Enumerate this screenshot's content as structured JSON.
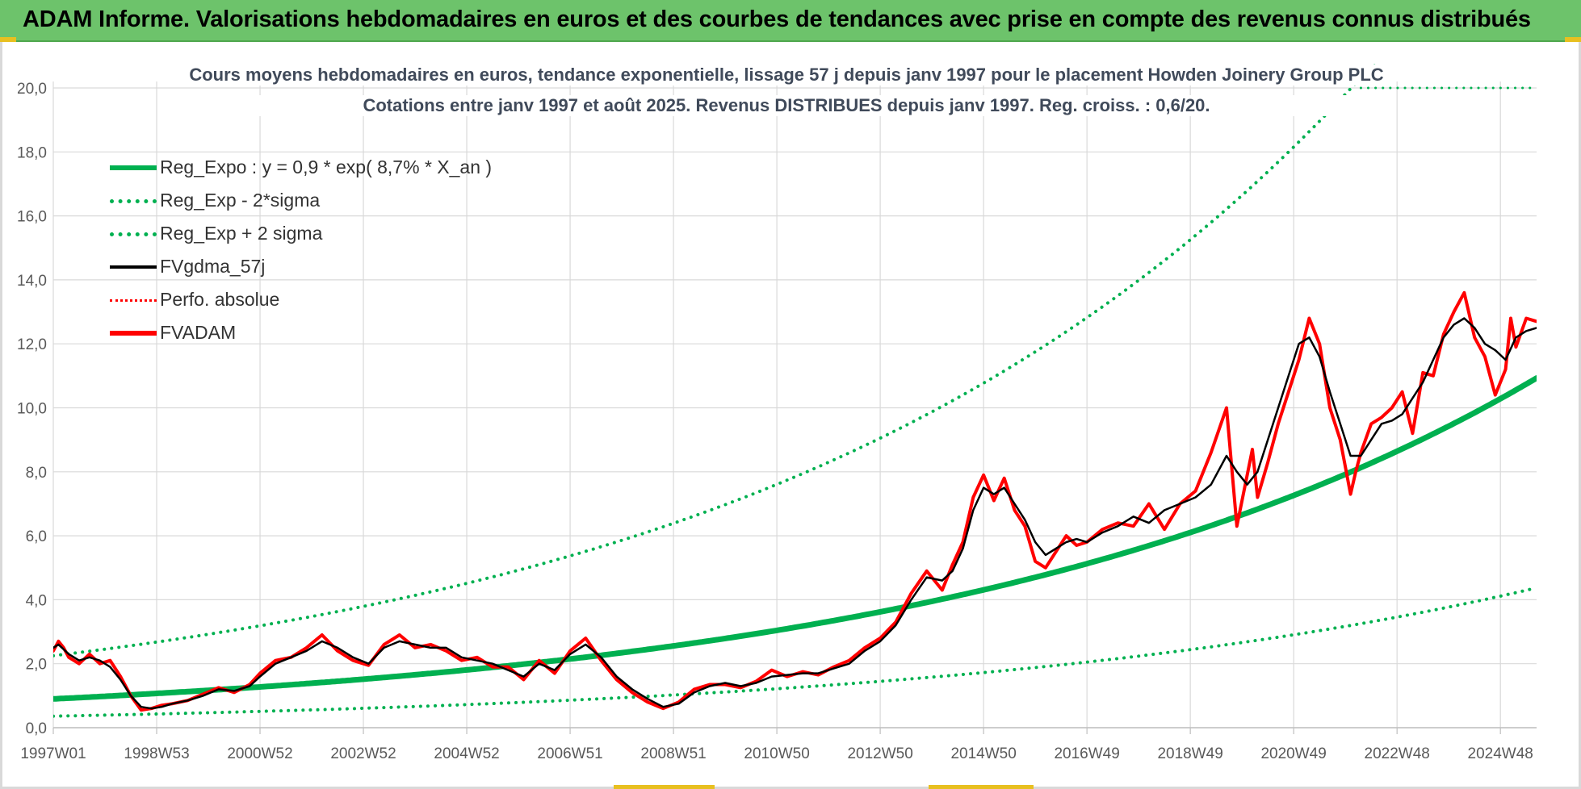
{
  "banner": {
    "title": "ADAM Informe. Valorisations hebdomadaires en euros et des courbes de tendances avec prise en compte des revenus connus distribués"
  },
  "colors": {
    "banner_bg": "#6dc36b",
    "reg_green": "#00b050",
    "black": "#000000",
    "red": "#ff0000"
  },
  "chart_data": {
    "type": "line",
    "title": [
      "Cours moyens hebdomadaires en euros, tendance exponentielle, lissage 57 j depuis janv 1997 pour le placement Howden Joinery Group PLC",
      "Cotations entre janv 1997 et août 2025.  Revenus DISTRIBUES depuis janv 1997. Reg. croiss. : 0,6/20."
    ],
    "xlabel": "",
    "ylabel": "",
    "ylim": [
      0,
      20
    ],
    "y_ticks": [
      "0,0",
      "2,0",
      "4,0",
      "6,0",
      "8,0",
      "10,0",
      "12,0",
      "14,0",
      "16,0",
      "18,0",
      "20,0"
    ],
    "x_ticks": [
      "1997W01",
      "1998W53",
      "2000W52",
      "2002W52",
      "2004W52",
      "2006W51",
      "2008W51",
      "2010W50",
      "2012W50",
      "2014W50",
      "2016W49",
      "2018W49",
      "2020W49",
      "2022W48",
      "2024W48"
    ],
    "x_tick_years": [
      1997.0,
      1999.0,
      2001.0,
      2003.0,
      2005.0,
      2007.0,
      2009.0,
      2011.0,
      2013.0,
      2015.0,
      2017.0,
      2019.0,
      2021.0,
      2023.0,
      2025.0
    ],
    "x_range_years": [
      1997.0,
      2025.7
    ],
    "grid": true,
    "legend_position": "top-left",
    "regression": {
      "label": "Reg_Expo : y = 0,9 * exp( 8,7% *  X_an )",
      "a": 0.9,
      "rate": 0.087,
      "sigma_factor": 2.5
    },
    "series": [
      {
        "name": "Reg_Expo : y = 0,9 * exp( 8,7% *  X_an )",
        "style": "solid-thick",
        "color": "#00b050"
      },
      {
        "name": "Reg_Exp - 2*sigma",
        "style": "dotted",
        "color": "#00b050"
      },
      {
        "name": "Reg_Exp + 2 sigma",
        "style": "dotted",
        "color": "#00b050"
      },
      {
        "name": "FVgdma_57j",
        "style": "solid",
        "color": "#000000",
        "x": [
          1997.0,
          1997.1,
          1997.3,
          1997.5,
          1997.7,
          1997.9,
          1998.1,
          1998.3,
          1998.5,
          1998.7,
          1998.9,
          1999.1,
          1999.3,
          1999.6,
          1999.9,
          2000.2,
          2000.5,
          2000.8,
          2001.0,
          2001.3,
          2001.6,
          2001.9,
          2002.2,
          2002.5,
          2002.8,
          2003.1,
          2003.4,
          2003.7,
          2004.0,
          2004.3,
          2004.6,
          2004.9,
          2005.2,
          2005.5,
          2005.8,
          2006.1,
          2006.4,
          2006.7,
          2007.0,
          2007.3,
          2007.6,
          2007.9,
          2008.2,
          2008.5,
          2008.8,
          2009.1,
          2009.4,
          2009.7,
          2010.0,
          2010.3,
          2010.6,
          2010.9,
          2011.2,
          2011.5,
          2011.8,
          2012.1,
          2012.4,
          2012.7,
          2013.0,
          2013.3,
          2013.6,
          2013.9,
          2014.2,
          2014.4,
          2014.6,
          2014.8,
          2015.0,
          2015.2,
          2015.4,
          2015.6,
          2015.8,
          2016.0,
          2016.2,
          2016.4,
          2016.6,
          2016.8,
          2017.0,
          2017.3,
          2017.6,
          2017.9,
          2018.2,
          2018.5,
          2018.8,
          2019.1,
          2019.4,
          2019.7,
          2019.9,
          2020.1,
          2020.3,
          2020.5,
          2020.7,
          2020.9,
          2021.1,
          2021.3,
          2021.5,
          2021.7,
          2021.9,
          2022.1,
          2022.3,
          2022.5,
          2022.7,
          2022.9,
          2023.1,
          2023.3,
          2023.5,
          2023.7,
          2023.9,
          2024.1,
          2024.3,
          2024.5,
          2024.7,
          2024.9,
          2025.1,
          2025.3,
          2025.5,
          2025.7
        ],
        "values": [
          2.5,
          2.6,
          2.3,
          2.1,
          2.2,
          2.1,
          1.9,
          1.5,
          1.0,
          0.65,
          0.6,
          0.65,
          0.75,
          0.85,
          1.0,
          1.2,
          1.15,
          1.3,
          1.6,
          2.0,
          2.2,
          2.4,
          2.7,
          2.5,
          2.2,
          2.0,
          2.5,
          2.7,
          2.6,
          2.5,
          2.5,
          2.2,
          2.1,
          2.0,
          1.8,
          1.6,
          2.0,
          1.8,
          2.3,
          2.6,
          2.2,
          1.6,
          1.2,
          0.9,
          0.65,
          0.75,
          1.1,
          1.3,
          1.4,
          1.3,
          1.4,
          1.6,
          1.65,
          1.7,
          1.7,
          1.85,
          2.0,
          2.4,
          2.7,
          3.2,
          4.0,
          4.7,
          4.6,
          4.9,
          5.6,
          6.8,
          7.5,
          7.3,
          7.5,
          7.0,
          6.5,
          5.8,
          5.4,
          5.6,
          5.8,
          5.9,
          5.8,
          6.1,
          6.3,
          6.6,
          6.4,
          6.8,
          7.0,
          7.2,
          7.6,
          8.5,
          8.0,
          7.6,
          8.0,
          9.0,
          10.0,
          11.0,
          12.0,
          12.2,
          11.6,
          10.5,
          9.5,
          8.5,
          8.5,
          9.0,
          9.5,
          9.6,
          9.8,
          10.3,
          10.8,
          11.5,
          12.2,
          12.6,
          12.8,
          12.5,
          12.0,
          11.8,
          11.5,
          12.2,
          12.4,
          12.5
        ]
      },
      {
        "name": "Perfo. absolue",
        "style": "dotted",
        "color": "#ff0000"
      },
      {
        "name": "FVADAM",
        "style": "solid-thick",
        "color": "#ff0000",
        "x": [
          1997.0,
          1997.1,
          1997.2,
          1997.3,
          1997.5,
          1997.7,
          1997.9,
          1998.1,
          1998.3,
          1998.5,
          1998.7,
          1998.9,
          1999.1,
          1999.3,
          1999.6,
          1999.9,
          2000.2,
          2000.5,
          2000.8,
          2001.0,
          2001.3,
          2001.6,
          2001.9,
          2002.2,
          2002.5,
          2002.8,
          2003.1,
          2003.4,
          2003.7,
          2004.0,
          2004.3,
          2004.6,
          2004.9,
          2005.2,
          2005.5,
          2005.8,
          2006.1,
          2006.4,
          2006.7,
          2007.0,
          2007.3,
          2007.6,
          2007.9,
          2008.2,
          2008.5,
          2008.8,
          2009.1,
          2009.4,
          2009.7,
          2010.0,
          2010.3,
          2010.6,
          2010.9,
          2011.2,
          2011.5,
          2011.8,
          2012.1,
          2012.4,
          2012.7,
          2013.0,
          2013.3,
          2013.6,
          2013.9,
          2014.2,
          2014.4,
          2014.6,
          2014.8,
          2015.0,
          2015.2,
          2015.4,
          2015.6,
          2015.8,
          2016.0,
          2016.2,
          2016.4,
          2016.6,
          2016.8,
          2017.0,
          2017.3,
          2017.6,
          2017.9,
          2018.2,
          2018.5,
          2018.8,
          2019.1,
          2019.4,
          2019.7,
          2019.9,
          2020.1,
          2020.2,
          2020.3,
          2020.5,
          2020.7,
          2020.9,
          2021.1,
          2021.3,
          2021.5,
          2021.7,
          2021.9,
          2022.1,
          2022.2,
          2022.3,
          2022.5,
          2022.7,
          2022.9,
          2023.1,
          2023.3,
          2023.5,
          2023.7,
          2023.9,
          2024.1,
          2024.3,
          2024.5,
          2024.7,
          2024.9,
          2025.1,
          2025.2,
          2025.3,
          2025.5,
          2025.7
        ],
        "values": [
          2.4,
          2.7,
          2.5,
          2.2,
          2.0,
          2.3,
          2.0,
          2.1,
          1.6,
          1.0,
          0.55,
          0.6,
          0.7,
          0.75,
          0.85,
          1.05,
          1.25,
          1.1,
          1.35,
          1.7,
          2.1,
          2.2,
          2.5,
          2.9,
          2.4,
          2.1,
          1.95,
          2.6,
          2.9,
          2.5,
          2.6,
          2.4,
          2.1,
          2.2,
          1.9,
          1.9,
          1.5,
          2.1,
          1.7,
          2.4,
          2.8,
          2.1,
          1.5,
          1.1,
          0.8,
          0.6,
          0.8,
          1.2,
          1.35,
          1.35,
          1.25,
          1.45,
          1.8,
          1.6,
          1.75,
          1.65,
          1.9,
          2.1,
          2.5,
          2.8,
          3.3,
          4.2,
          4.9,
          4.3,
          5.1,
          5.8,
          7.2,
          7.9,
          7.1,
          7.8,
          6.8,
          6.3,
          5.2,
          5.0,
          5.5,
          6.0,
          5.7,
          5.8,
          6.2,
          6.4,
          6.3,
          7.0,
          6.2,
          7.0,
          7.4,
          8.6,
          10.0,
          6.3,
          7.9,
          8.7,
          7.2,
          8.3,
          9.5,
          10.5,
          11.5,
          12.8,
          12.0,
          10.0,
          9.0,
          7.3,
          8.0,
          8.6,
          9.5,
          9.7,
          10.0,
          10.5,
          9.2,
          11.1,
          11.0,
          12.3,
          13.0,
          13.6,
          12.2,
          11.6,
          10.4,
          11.2,
          12.8,
          11.9,
          12.8,
          12.7
        ]
      }
    ]
  }
}
